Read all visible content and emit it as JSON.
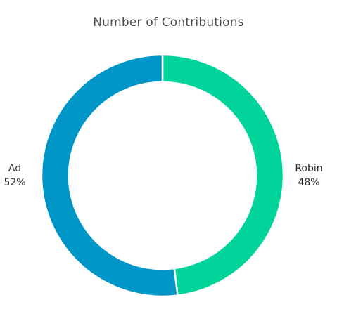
{
  "chart_data": {
    "type": "pie",
    "title": "Number of Contributions",
    "slices": [
      {
        "label": "Robin",
        "value": 48,
        "percent_label": "48%",
        "color": "#00d49a"
      },
      {
        "label": "Ad",
        "value": 52,
        "percent_label": "52%",
        "color": "#0097c8"
      }
    ],
    "legend": "none",
    "donut": true
  }
}
